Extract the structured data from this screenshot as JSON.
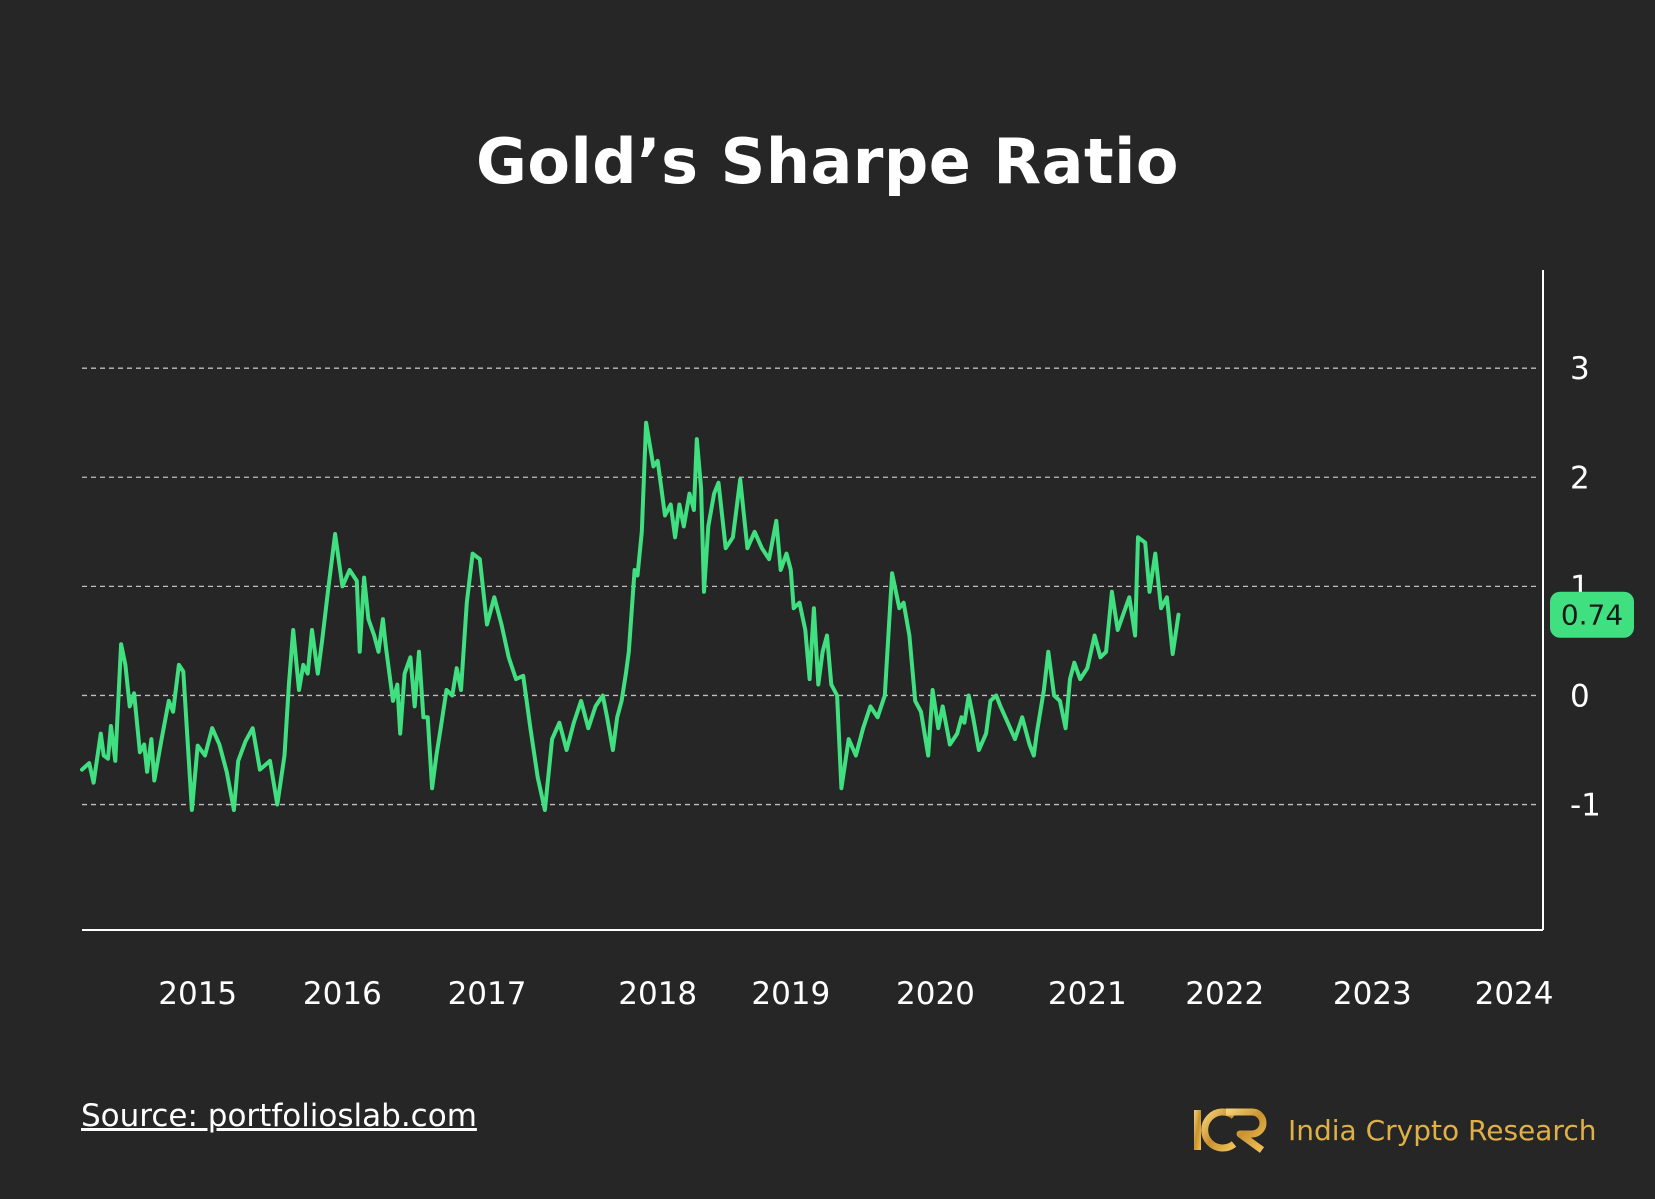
{
  "chart_title": "Gold’s Sharpe Ratio",
  "source_text": "Source: portfolioslab.com",
  "brand": {
    "logo_text": "ICR",
    "name": "India Crypto Research"
  },
  "colors": {
    "background": "#262626",
    "line": "#40e080",
    "axis": "#ffffff",
    "brand": "#e0b048"
  },
  "chart_data": {
    "type": "line",
    "title": "Gold’s Sharpe Ratio",
    "xlabel": "",
    "ylabel": "",
    "x_range": [
      2014.2,
      2024.3
    ],
    "ylim": [
      -2.15,
      3.9
    ],
    "y_axis_side": "right",
    "y_ticks": [
      3,
      2,
      1,
      0,
      -1
    ],
    "x_ticks": [
      {
        "label": "2015",
        "x": 2015.0
      },
      {
        "label": "2016",
        "x": 2016.0
      },
      {
        "label": "2017",
        "x": 2017.0
      },
      {
        "label": "2018",
        "x": 2018.18
      },
      {
        "label": "2019",
        "x": 2019.1
      },
      {
        "label": "2020",
        "x": 2020.1
      },
      {
        "label": "2021",
        "x": 2021.15
      },
      {
        "label": "2022",
        "x": 2022.1
      },
      {
        "label": "2023",
        "x": 2023.12
      },
      {
        "label": "2024",
        "x": 2024.1
      }
    ],
    "grid": "horizontal dashed",
    "last_value_label": "0.74",
    "series": [
      {
        "values": [
          [
            2014.2,
            -0.68
          ],
          [
            2014.25,
            -0.62
          ],
          [
            2014.28,
            -0.8
          ],
          [
            2014.33,
            -0.35
          ],
          [
            2014.35,
            -0.55
          ],
          [
            2014.38,
            -0.58
          ],
          [
            2014.4,
            -0.28
          ],
          [
            2014.43,
            -0.6
          ],
          [
            2014.47,
            0.47
          ],
          [
            2014.5,
            0.28
          ],
          [
            2014.53,
            -0.1
          ],
          [
            2014.56,
            0.02
          ],
          [
            2014.6,
            -0.52
          ],
          [
            2014.63,
            -0.45
          ],
          [
            2014.65,
            -0.7
          ],
          [
            2014.68,
            -0.4
          ],
          [
            2014.7,
            -0.78
          ],
          [
            2014.75,
            -0.4
          ],
          [
            2014.8,
            -0.05
          ],
          [
            2014.83,
            -0.15
          ],
          [
            2014.87,
            0.28
          ],
          [
            2014.9,
            0.22
          ],
          [
            2014.96,
            -1.05
          ],
          [
            2015.0,
            -0.46
          ],
          [
            2015.05,
            -0.55
          ],
          [
            2015.1,
            -0.3
          ],
          [
            2015.15,
            -0.45
          ],
          [
            2015.2,
            -0.7
          ],
          [
            2015.25,
            -1.05
          ],
          [
            2015.28,
            -0.6
          ],
          [
            2015.33,
            -0.42
          ],
          [
            2015.38,
            -0.3
          ],
          [
            2015.43,
            -0.68
          ],
          [
            2015.5,
            -0.6
          ],
          [
            2015.55,
            -1.0
          ],
          [
            2015.6,
            -0.55
          ],
          [
            2015.63,
            0.1
          ],
          [
            2015.66,
            0.6
          ],
          [
            2015.7,
            0.05
          ],
          [
            2015.73,
            0.28
          ],
          [
            2015.76,
            0.2
          ],
          [
            2015.79,
            0.6
          ],
          [
            2015.83,
            0.2
          ],
          [
            2015.86,
            0.5
          ],
          [
            2015.9,
            0.95
          ],
          [
            2015.95,
            1.48
          ],
          [
            2016.0,
            1.0
          ],
          [
            2016.05,
            1.15
          ],
          [
            2016.1,
            1.05
          ],
          [
            2016.12,
            0.4
          ],
          [
            2016.15,
            1.08
          ],
          [
            2016.18,
            0.7
          ],
          [
            2016.22,
            0.55
          ],
          [
            2016.25,
            0.4
          ],
          [
            2016.28,
            0.7
          ],
          [
            2016.3,
            0.45
          ],
          [
            2016.35,
            -0.05
          ],
          [
            2016.38,
            0.1
          ],
          [
            2016.4,
            -0.35
          ],
          [
            2016.43,
            0.2
          ],
          [
            2016.47,
            0.35
          ],
          [
            2016.5,
            -0.1
          ],
          [
            2016.53,
            0.4
          ],
          [
            2016.56,
            -0.2
          ],
          [
            2016.59,
            -0.2
          ],
          [
            2016.62,
            -0.85
          ],
          [
            2016.65,
            -0.55
          ],
          [
            2016.68,
            -0.3
          ],
          [
            2016.72,
            0.05
          ],
          [
            2016.76,
            0.0
          ],
          [
            2016.79,
            0.25
          ],
          [
            2016.82,
            0.05
          ],
          [
            2016.86,
            0.85
          ],
          [
            2016.9,
            1.3
          ],
          [
            2016.95,
            1.25
          ],
          [
            2017.0,
            0.65
          ],
          [
            2017.05,
            0.9
          ],
          [
            2017.1,
            0.65
          ],
          [
            2017.15,
            0.35
          ],
          [
            2017.2,
            0.15
          ],
          [
            2017.25,
            0.18
          ],
          [
            2017.3,
            -0.3
          ],
          [
            2017.35,
            -0.75
          ],
          [
            2017.4,
            -1.05
          ],
          [
            2017.45,
            -0.4
          ],
          [
            2017.5,
            -0.25
          ],
          [
            2017.55,
            -0.5
          ],
          [
            2017.6,
            -0.25
          ],
          [
            2017.65,
            -0.05
          ],
          [
            2017.7,
            -0.3
          ],
          [
            2017.75,
            -0.1
          ],
          [
            2017.8,
            0.0
          ],
          [
            2017.83,
            -0.2
          ],
          [
            2017.87,
            -0.5
          ],
          [
            2017.9,
            -0.2
          ],
          [
            2017.93,
            -0.05
          ],
          [
            2017.96,
            0.2
          ],
          [
            2017.98,
            0.4
          ],
          [
            2018.02,
            1.15
          ],
          [
            2018.04,
            1.1
          ],
          [
            2018.07,
            1.5
          ],
          [
            2018.1,
            2.5
          ],
          [
            2018.15,
            2.1
          ],
          [
            2018.18,
            2.15
          ],
          [
            2018.2,
            1.95
          ],
          [
            2018.23,
            1.65
          ],
          [
            2018.27,
            1.75
          ],
          [
            2018.3,
            1.45
          ],
          [
            2018.33,
            1.75
          ],
          [
            2018.36,
            1.55
          ],
          [
            2018.4,
            1.85
          ],
          [
            2018.43,
            1.7
          ],
          [
            2018.45,
            2.35
          ],
          [
            2018.48,
            1.9
          ],
          [
            2018.5,
            0.95
          ],
          [
            2018.53,
            1.55
          ],
          [
            2018.57,
            1.85
          ],
          [
            2018.6,
            1.95
          ],
          [
            2018.65,
            1.35
          ],
          [
            2018.7,
            1.45
          ],
          [
            2018.75,
            1.98
          ],
          [
            2018.8,
            1.35
          ],
          [
            2018.85,
            1.5
          ],
          [
            2018.9,
            1.35
          ],
          [
            2018.95,
            1.25
          ],
          [
            2019.0,
            1.6
          ],
          [
            2019.03,
            1.15
          ],
          [
            2019.07,
            1.3
          ],
          [
            2019.1,
            1.15
          ],
          [
            2019.12,
            0.8
          ],
          [
            2019.16,
            0.85
          ],
          [
            2019.2,
            0.6
          ],
          [
            2019.23,
            0.15
          ],
          [
            2019.26,
            0.8
          ],
          [
            2019.29,
            0.1
          ],
          [
            2019.32,
            0.4
          ],
          [
            2019.35,
            0.55
          ],
          [
            2019.38,
            0.1
          ],
          [
            2019.42,
            0.0
          ],
          [
            2019.45,
            -0.85
          ],
          [
            2019.5,
            -0.4
          ],
          [
            2019.55,
            -0.55
          ],
          [
            2019.6,
            -0.3
          ],
          [
            2019.65,
            -0.1
          ],
          [
            2019.7,
            -0.2
          ],
          [
            2019.75,
            0.0
          ],
          [
            2019.8,
            1.12
          ],
          [
            2019.85,
            0.8
          ],
          [
            2019.88,
            0.85
          ],
          [
            2019.92,
            0.55
          ],
          [
            2019.96,
            -0.05
          ],
          [
            2020.0,
            -0.15
          ],
          [
            2020.05,
            -0.55
          ],
          [
            2020.08,
            0.05
          ],
          [
            2020.12,
            -0.3
          ],
          [
            2020.15,
            -0.1
          ],
          [
            2020.2,
            -0.45
          ],
          [
            2020.25,
            -0.35
          ],
          [
            2020.28,
            -0.2
          ],
          [
            2020.3,
            -0.25
          ],
          [
            2020.33,
            0.0
          ],
          [
            2020.36,
            -0.2
          ],
          [
            2020.4,
            -0.5
          ],
          [
            2020.45,
            -0.35
          ],
          [
            2020.48,
            -0.05
          ],
          [
            2020.52,
            0.0
          ],
          [
            2020.55,
            -0.1
          ],
          [
            2020.6,
            -0.25
          ],
          [
            2020.65,
            -0.4
          ],
          [
            2020.7,
            -0.2
          ],
          [
            2020.75,
            -0.45
          ],
          [
            2020.78,
            -0.55
          ],
          [
            2020.8,
            -0.35
          ],
          [
            2020.85,
            0.05
          ],
          [
            2020.88,
            0.4
          ],
          [
            2020.92,
            0.0
          ],
          [
            2020.96,
            -0.05
          ],
          [
            2021.0,
            -0.3
          ],
          [
            2021.03,
            0.15
          ],
          [
            2021.06,
            0.3
          ],
          [
            2021.1,
            0.15
          ],
          [
            2021.15,
            0.25
          ],
          [
            2021.2,
            0.55
          ],
          [
            2021.24,
            0.35
          ],
          [
            2021.28,
            0.4
          ],
          [
            2021.32,
            0.95
          ],
          [
            2021.36,
            0.6
          ],
          [
            2021.4,
            0.75
          ],
          [
            2021.44,
            0.9
          ],
          [
            2021.48,
            0.55
          ],
          [
            2021.5,
            1.45
          ],
          [
            2021.55,
            1.4
          ],
          [
            2021.58,
            0.95
          ],
          [
            2021.62,
            1.3
          ],
          [
            2021.66,
            0.8
          ],
          [
            2021.7,
            0.9
          ],
          [
            2021.74,
            0.38
          ],
          [
            2021.78,
            0.74
          ]
        ]
      }
    ]
  }
}
